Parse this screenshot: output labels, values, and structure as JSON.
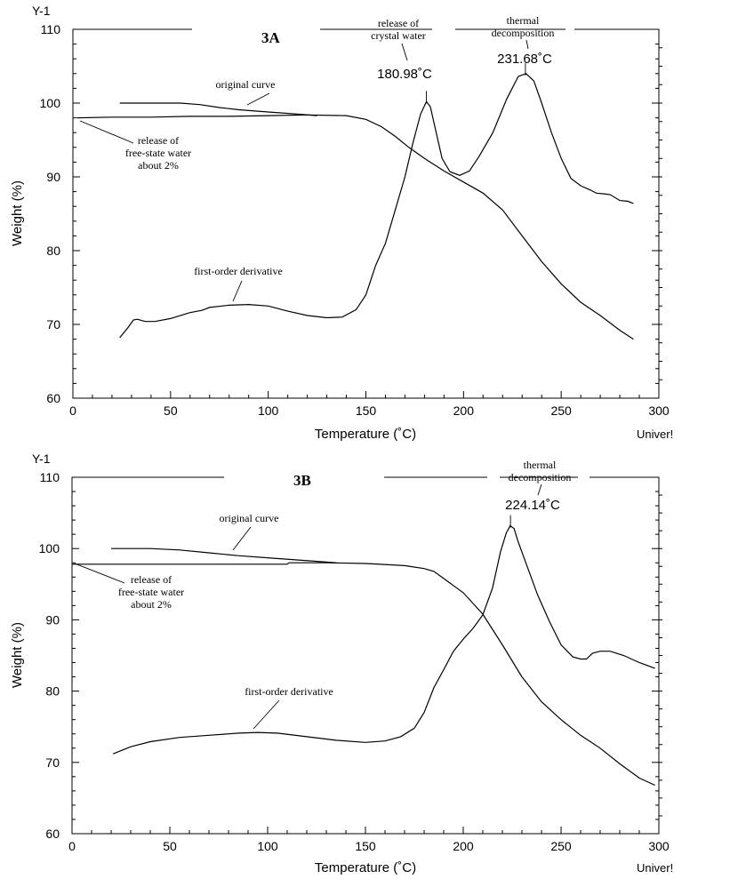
{
  "chart_data": [
    {
      "id": "3A",
      "type": "line",
      "title": "3A",
      "xlabel": "Temperature (˚C)",
      "ylabel": "Weight (%)",
      "y_axis_tag": "Y-1",
      "x_corner_label": "Univer!",
      "xlim": [
        0,
        300
      ],
      "ylim": [
        60,
        110
      ],
      "x_ticks": [
        0,
        50,
        100,
        150,
        200,
        250,
        300
      ],
      "y_ticks": [
        60,
        70,
        80,
        90,
        100,
        110
      ],
      "series": [
        {
          "key": "original",
          "points": [
            [
              2,
              98.0
            ],
            [
              20,
              98.1
            ],
            [
              40,
              98.1
            ],
            [
              60,
              98.2
            ],
            [
              80,
              98.2
            ],
            [
              100,
              98.3
            ],
            [
              120,
              98.4
            ],
            [
              140,
              98.3
            ],
            [
              150,
              97.8
            ],
            [
              158,
              96.8
            ],
            [
              165,
              95.5
            ],
            [
              172,
              94.0
            ],
            [
              180,
              92.5
            ],
            [
              190,
              90.8
            ],
            [
              200,
              89.3
            ],
            [
              210,
              87.8
            ],
            [
              220,
              85.5
            ],
            [
              230,
              82.0
            ],
            [
              240,
              78.5
            ],
            [
              250,
              75.5
            ],
            [
              260,
              73.0
            ],
            [
              270,
              71.2
            ],
            [
              280,
              69.2
            ],
            [
              287,
              68.0
            ]
          ]
        },
        {
          "key": "original_upper",
          "points": [
            [
              24,
              100.0
            ],
            [
              40,
              100.0
            ],
            [
              55,
              100.0
            ],
            [
              65,
              99.8
            ],
            [
              75,
              99.4
            ],
            [
              85,
              99.1
            ],
            [
              100,
              98.8
            ],
            [
              115,
              98.5
            ],
            [
              125,
              98.3
            ]
          ]
        },
        {
          "key": "derivative",
          "points": [
            [
              24,
              68.2
            ],
            [
              28,
              69.5
            ],
            [
              31,
              70.6
            ],
            [
              33,
              70.7
            ],
            [
              37,
              70.4
            ],
            [
              42,
              70.4
            ],
            [
              50,
              70.8
            ],
            [
              60,
              71.6
            ],
            [
              66,
              71.9
            ],
            [
              70,
              72.3
            ],
            [
              80,
              72.6
            ],
            [
              90,
              72.7
            ],
            [
              100,
              72.5
            ],
            [
              110,
              71.8
            ],
            [
              120,
              71.2
            ],
            [
              130,
              70.9
            ],
            [
              138,
              71.0
            ],
            [
              145,
              72.0
            ],
            [
              150,
              74.0
            ],
            [
              155,
              78.0
            ],
            [
              160,
              81.0
            ],
            [
              165,
              85.5
            ],
            [
              170,
              90.0
            ],
            [
              174,
              94.5
            ],
            [
              178,
              98.5
            ],
            [
              181,
              100.2
            ],
            [
              183,
              99.5
            ],
            [
              186,
              96.0
            ],
            [
              189,
              92.5
            ],
            [
              193,
              90.7
            ],
            [
              198,
              90.2
            ],
            [
              203,
              90.8
            ],
            [
              208,
              92.8
            ],
            [
              215,
              96.0
            ],
            [
              222,
              100.5
            ],
            [
              228,
              103.6
            ],
            [
              232,
              104.0
            ],
            [
              236,
              103.0
            ],
            [
              240,
              100.0
            ],
            [
              245,
              96.0
            ],
            [
              250,
              92.5
            ],
            [
              255,
              89.8
            ],
            [
              260,
              88.8
            ],
            [
              265,
              88.2
            ],
            [
              268,
              87.8
            ],
            [
              272,
              87.7
            ],
            [
              275,
              87.6
            ],
            [
              280,
              86.8
            ],
            [
              284,
              86.7
            ],
            [
              287,
              86.4
            ]
          ]
        }
      ],
      "annotations": {
        "original_curve": "original curve",
        "free_water": [
          "release of",
          "free-state water",
          "about 2%"
        ],
        "derivative": "first-order derivative",
        "crystal_water": [
          "release of",
          "crystal water"
        ],
        "thermal": [
          "thermal",
          "decomposition"
        ],
        "peak1_label": "180.98˚C",
        "peak1_x": 180.98,
        "peak2_label": "231.68˚C",
        "peak2_x": 231.68
      }
    },
    {
      "id": "3B",
      "type": "line",
      "title": "3B",
      "xlabel": "Temperature (˚C)",
      "ylabel": "Weight (%)",
      "y_axis_tag": "Y-1",
      "x_corner_label": "Univer!",
      "xlim": [
        0,
        300
      ],
      "ylim": [
        60,
        110
      ],
      "x_ticks": [
        0,
        50,
        100,
        150,
        200,
        250,
        300
      ],
      "y_ticks": [
        60,
        70,
        80,
        90,
        100,
        110
      ],
      "series": [
        {
          "key": "original",
          "points": [
            [
              0,
              97.8
            ],
            [
              20,
              97.8
            ],
            [
              40,
              97.8
            ],
            [
              60,
              97.8
            ],
            [
              80,
              97.8
            ],
            [
              110,
              97.8
            ],
            [
              111,
              98.0
            ],
            [
              130,
              98.0
            ],
            [
              150,
              97.9
            ],
            [
              170,
              97.6
            ],
            [
              180,
              97.2
            ],
            [
              185,
              96.8
            ],
            [
              190,
              95.8
            ],
            [
              200,
              93.8
            ],
            [
              210,
              90.8
            ],
            [
              220,
              86.5
            ],
            [
              230,
              82.0
            ],
            [
              240,
              78.5
            ],
            [
              250,
              76.0
            ],
            [
              260,
              73.8
            ],
            [
              270,
              72.0
            ],
            [
              280,
              69.8
            ],
            [
              290,
              67.8
            ],
            [
              298,
              66.8
            ]
          ]
        },
        {
          "key": "original_upper",
          "points": [
            [
              20,
              100.0
            ],
            [
              40,
              100.0
            ],
            [
              55,
              99.8
            ],
            [
              70,
              99.4
            ],
            [
              85,
              99.0
            ],
            [
              100,
              98.7
            ],
            [
              115,
              98.4
            ],
            [
              130,
              98.1
            ],
            [
              135,
              98.0
            ]
          ]
        },
        {
          "key": "derivative",
          "points": [
            [
              21,
              71.2
            ],
            [
              30,
              72.2
            ],
            [
              40,
              72.9
            ],
            [
              55,
              73.5
            ],
            [
              70,
              73.8
            ],
            [
              85,
              74.1
            ],
            [
              95,
              74.2
            ],
            [
              105,
              74.1
            ],
            [
              120,
              73.6
            ],
            [
              135,
              73.1
            ],
            [
              150,
              72.8
            ],
            [
              160,
              73.0
            ],
            [
              168,
              73.6
            ],
            [
              175,
              74.8
            ],
            [
              180,
              77.0
            ],
            [
              185,
              80.5
            ],
            [
              190,
              83.0
            ],
            [
              195,
              85.6
            ],
            [
              200,
              87.3
            ],
            [
              205,
              88.8
            ],
            [
              210,
              90.7
            ],
            [
              215,
              94.5
            ],
            [
              219,
              99.5
            ],
            [
              222,
              102.2
            ],
            [
              224,
              103.2
            ],
            [
              226,
              102.8
            ],
            [
              228,
              101.0
            ],
            [
              232,
              98.0
            ],
            [
              238,
              93.5
            ],
            [
              244,
              89.8
            ],
            [
              250,
              86.5
            ],
            [
              256,
              84.8
            ],
            [
              260,
              84.5
            ],
            [
              263,
              84.5
            ],
            [
              266,
              85.3
            ],
            [
              270,
              85.6
            ],
            [
              275,
              85.6
            ],
            [
              282,
              85.0
            ],
            [
              290,
              84.0
            ],
            [
              298,
              83.2
            ]
          ]
        }
      ],
      "annotations": {
        "original_curve": "original curve",
        "free_water": [
          "release of",
          "free-state water",
          "about 2%"
        ],
        "derivative": "first-order derivative",
        "thermal": [
          "thermal",
          "decomposition"
        ],
        "peak1_label": "224.14˚C",
        "peak1_x": 224.14
      }
    }
  ]
}
